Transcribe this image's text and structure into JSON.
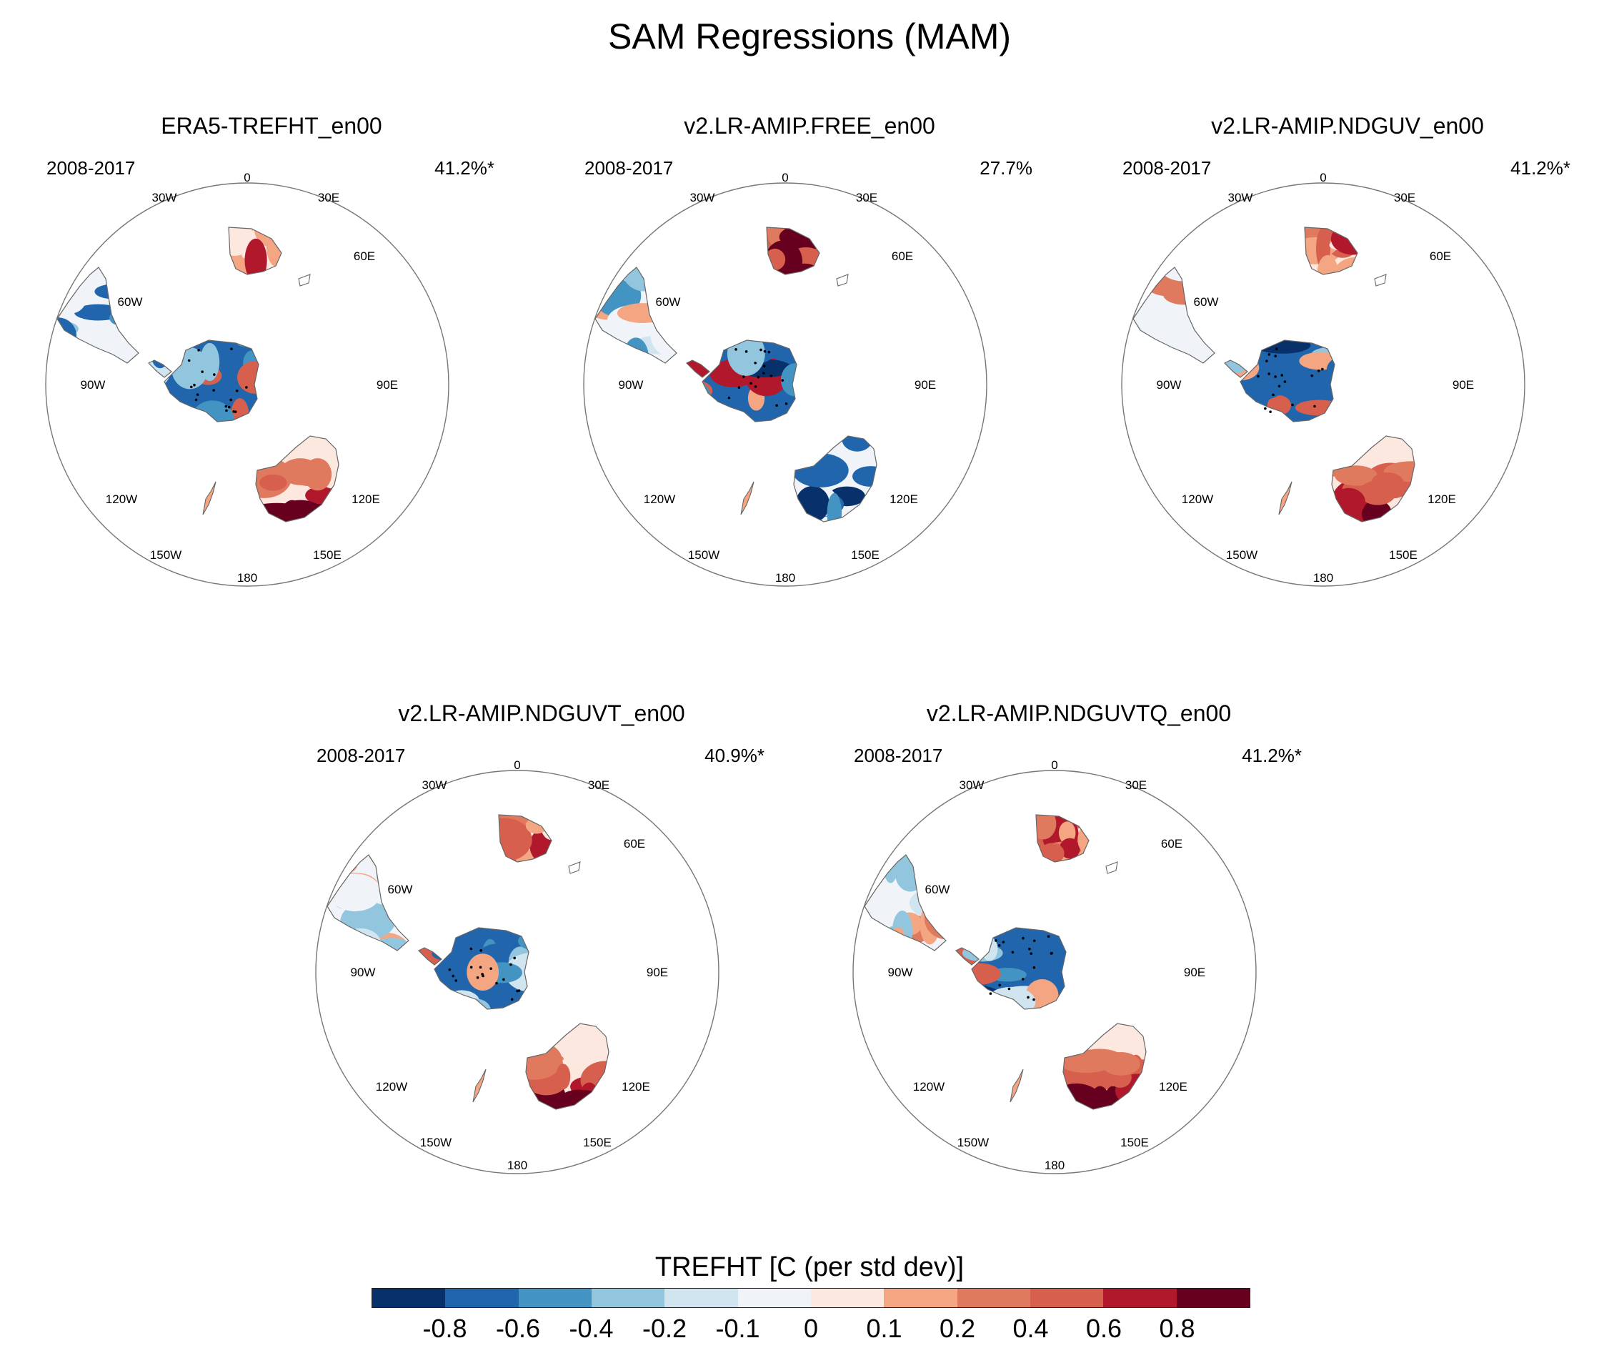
{
  "figure": {
    "title": "SAM Regressions (MAM)"
  },
  "panels": [
    {
      "title": "ERA5-TREFHT_en00",
      "period": "2008-2017",
      "percent": "41.2%*",
      "field": {
        "australia": "warm-south",
        "south_america": "cool",
        "africa": "warm",
        "antarctica": "mixed-cool"
      }
    },
    {
      "title": "v2.LR-AMIP.FREE_en00",
      "period": "2008-2017",
      "percent": "27.7%",
      "field": {
        "australia": "cool",
        "south_america": "light-cool",
        "africa": "warm-strong",
        "antarctica": "mixed"
      }
    },
    {
      "title": "v2.LR-AMIP.NDGUV_en00",
      "period": "2008-2017",
      "percent": "41.2%*",
      "field": {
        "australia": "warm-south",
        "south_america": "light-cool",
        "africa": "warm",
        "antarctica": "mixed-cool"
      }
    },
    {
      "title": "v2.LR-AMIP.NDGUVT_en00",
      "period": "2008-2017",
      "percent": "40.9%*",
      "field": {
        "australia": "warm-south",
        "south_america": "light-cool",
        "africa": "warm",
        "antarctica": "mixed-cool"
      }
    },
    {
      "title": "v2.LR-AMIP.NDGUVTQ_en00",
      "period": "2008-2017",
      "percent": "41.2%*",
      "field": {
        "australia": "warm-south",
        "south_america": "light-cool",
        "africa": "warm",
        "antarctica": "mixed-cool"
      }
    }
  ],
  "longitude_labels": [
    "0",
    "30E",
    "60E",
    "90E",
    "120E",
    "150E",
    "180",
    "150W",
    "120W",
    "90W",
    "60W",
    "30W"
  ],
  "colorbar": {
    "title": "TREFHT [C (per std dev)]",
    "tick_labels": [
      "-0.8",
      "-0.6",
      "-0.4",
      "-0.2",
      "-0.1",
      "0",
      "0.1",
      "0.2",
      "0.4",
      "0.6",
      "0.8"
    ],
    "colors": [
      "#08306b",
      "#2166ac",
      "#4393c3",
      "#92c5de",
      "#d1e5f0",
      "#f0f4f8",
      "#fde8e0",
      "#f4a582",
      "#e07a5f",
      "#d6604d",
      "#b2182b",
      "#67001f"
    ]
  }
}
